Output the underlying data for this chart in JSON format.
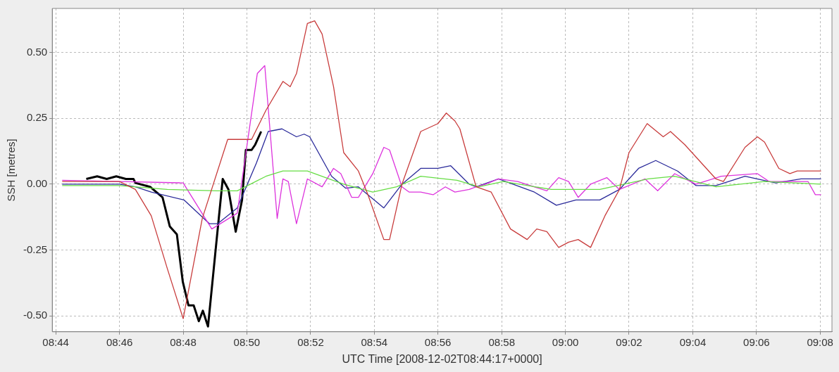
{
  "chart_data": {
    "type": "line",
    "xlabel": "UTC Time [2008-12-02T08:44:17+0000]",
    "ylabel": "SSH [metres]",
    "xlim": [
      8.7315,
      9.1395
    ],
    "ylim": [
      -0.56,
      0.667
    ],
    "xticks": [
      {
        "value": 8.7333,
        "label": "08:44"
      },
      {
        "value": 8.7667,
        "label": "08:46"
      },
      {
        "value": 8.8,
        "label": "08:48"
      },
      {
        "value": 8.8333,
        "label": "08:50"
      },
      {
        "value": 8.8667,
        "label": "08:52"
      },
      {
        "value": 8.9,
        "label": "08:54"
      },
      {
        "value": 8.9333,
        "label": "08:56"
      },
      {
        "value": 8.9667,
        "label": "08:58"
      },
      {
        "value": 9,
        "label": "09:00"
      },
      {
        "value": 9.0333,
        "label": "09:02"
      },
      {
        "value": 9.0667,
        "label": "09:04"
      },
      {
        "value": 9.1,
        "label": "09:06"
      },
      {
        "value": 9.1333,
        "label": "09:08"
      }
    ],
    "yticks": [
      {
        "value": -0.5,
        "label": "-0.50"
      },
      {
        "value": -0.25,
        "label": "-0.25"
      },
      {
        "value": 0,
        "label": "0.00"
      },
      {
        "value": 0.25,
        "label": "0.25"
      },
      {
        "value": 0.5,
        "label": "0.50"
      }
    ],
    "grid": true,
    "legend": false,
    "marker": "none",
    "line_style": "solid",
    "series": [
      {
        "color": "#c83c3c",
        "x": [
          8.7367,
          8.7667,
          8.775,
          8.7833,
          8.7917,
          8.8,
          8.81,
          8.8233,
          8.8358,
          8.8433,
          8.8522,
          8.856,
          8.8593,
          8.865,
          8.8688,
          8.8727,
          8.8787,
          8.884,
          8.8917,
          8.8967,
          8.905,
          8.908,
          8.9145,
          8.9243,
          8.9333,
          8.9377,
          8.9422,
          8.9448,
          8.9533,
          8.9612,
          8.9713,
          8.98,
          8.985,
          8.9903,
          8.9965,
          9.0017,
          9.0067,
          9.0132,
          9.0207,
          9.0283,
          9.0333,
          9.0428,
          9.0512,
          9.055,
          9.0625,
          9.0788,
          9.0827,
          9.094,
          9.1005,
          9.1042,
          9.1117,
          9.1175,
          9.1213,
          9.1338
        ],
        "values": [
          0.01,
          0.01,
          -0.02,
          -0.12,
          -0.32,
          -0.51,
          -0.13,
          0.17,
          0.17,
          0.28,
          0.39,
          0.37,
          0.42,
          0.61,
          0.62,
          0.57,
          0.37,
          0.12,
          0.05,
          -0.04,
          -0.21,
          -0.21,
          0,
          0.2,
          0.23,
          0.27,
          0.24,
          0.21,
          -0.01,
          -0.03,
          -0.17,
          -0.21,
          -0.17,
          -0.18,
          -0.24,
          -0.22,
          -0.21,
          -0.24,
          -0.12,
          -0.02,
          0.12,
          0.23,
          0.18,
          0.2,
          0.15,
          0.02,
          0.01,
          0.14,
          0.18,
          0.16,
          0.06,
          0.04,
          0.05,
          0.05
        ]
      },
      {
        "color": "#66dd44",
        "x": [
          8.7367,
          8.7667,
          8.7917,
          8.818,
          8.8283,
          8.8433,
          8.8522,
          8.865,
          8.884,
          8.8992,
          8.9117,
          8.9243,
          8.9433,
          8.9547,
          8.9675,
          8.9927,
          9.018,
          9.0433,
          9.0572,
          9.0788,
          9.1042,
          9.1338
        ],
        "values": [
          -0.005,
          -0.005,
          -0.02,
          -0.025,
          -0.025,
          0.03,
          0.05,
          0.05,
          0,
          -0.03,
          -0.01,
          0.03,
          0.015,
          -0.01,
          0.01,
          -0.02,
          -0.02,
          0.02,
          0.03,
          -0.01,
          0.01,
          0
        ]
      },
      {
        "color": "#dd33dd",
        "x": [
          8.7367,
          8.7667,
          8.8,
          8.815,
          8.8283,
          8.8388,
          8.8427,
          8.8492,
          8.8522,
          8.855,
          8.8593,
          8.865,
          8.8727,
          8.8787,
          8.8825,
          8.8882,
          8.8917,
          8.8992,
          8.905,
          8.908,
          8.9145,
          8.9183,
          8.9243,
          8.9308,
          8.9372,
          8.9422,
          8.9497,
          8.9533,
          8.9583,
          8.965,
          8.975,
          8.9903,
          8.9965,
          9.0017,
          9.0067,
          9.0132,
          9.0217,
          9.0283,
          9.0417,
          9.0483,
          9.0572,
          9.0683,
          9.0815,
          9.1005,
          9.1067,
          9.127,
          9.1308,
          9.1338
        ],
        "values": [
          0.015,
          0.01,
          0.005,
          -0.17,
          -0.11,
          0.42,
          0.45,
          -0.13,
          0.02,
          0.01,
          -0.15,
          0.02,
          -0.01,
          0.06,
          0.04,
          -0.05,
          -0.05,
          0.04,
          0.14,
          0.13,
          -0.01,
          -0.03,
          -0.03,
          -0.04,
          -0.01,
          -0.03,
          -0.02,
          -0.01,
          0,
          0.02,
          0.01,
          -0.025,
          0.025,
          0.01,
          -0.05,
          0,
          0.025,
          -0.02,
          0.02,
          -0.025,
          0.04,
          0,
          0.03,
          0.04,
          0.01,
          0.01,
          -0.04,
          -0.04
        ]
      },
      {
        "color": "#2a2a9a",
        "x": [
          8.7367,
          8.7667,
          8.775,
          8.7833,
          8.8005,
          8.8138,
          8.818,
          8.8283,
          8.8383,
          8.8445,
          8.8517,
          8.8593,
          8.8633,
          8.8662,
          8.8777,
          8.885,
          8.8917,
          8.8967,
          8.905,
          8.9145,
          8.9243,
          8.9333,
          8.94,
          8.9497,
          8.9533,
          8.965,
          8.9763,
          8.9838,
          8.9953,
          9.0055,
          9.018,
          9.0283,
          9.0383,
          9.0473,
          9.0587,
          9.0683,
          9.0788,
          9.094,
          9.11,
          9.1233,
          9.1338
        ],
        "values": [
          0,
          0,
          -0.01,
          -0.03,
          -0.06,
          -0.15,
          -0.15,
          -0.09,
          0.08,
          0.2,
          0.21,
          0.18,
          0.19,
          0.18,
          0.03,
          -0.015,
          -0.01,
          -0.04,
          -0.09,
          0,
          0.06,
          0.06,
          0.07,
          0,
          -0.01,
          0.02,
          -0.01,
          -0.03,
          -0.08,
          -0.06,
          -0.06,
          -0.02,
          0.06,
          0.09,
          0.05,
          -0.005,
          -0.005,
          0.03,
          0.005,
          0.02,
          0.02
        ]
      },
      {
        "color": "#000000",
        "x": [
          8.7493,
          8.755,
          8.76,
          8.765,
          8.77,
          8.774,
          8.775,
          8.7827,
          8.7892,
          8.793,
          8.7967,
          8.7998,
          8.8028,
          8.8055,
          8.8082,
          8.8103,
          8.813,
          8.8167,
          8.8207,
          8.8237,
          8.8275,
          8.8308,
          8.8328,
          8.8358,
          8.8377,
          8.8408
        ],
        "values": [
          0.02,
          0.03,
          0.02,
          0.03,
          0.02,
          0.02,
          0.005,
          -0.01,
          -0.05,
          -0.16,
          -0.19,
          -0.37,
          -0.46,
          -0.46,
          -0.52,
          -0.48,
          -0.54,
          -0.27,
          0.02,
          -0.02,
          -0.18,
          -0.06,
          0.13,
          0.13,
          0.15,
          0.2
        ]
      }
    ]
  }
}
